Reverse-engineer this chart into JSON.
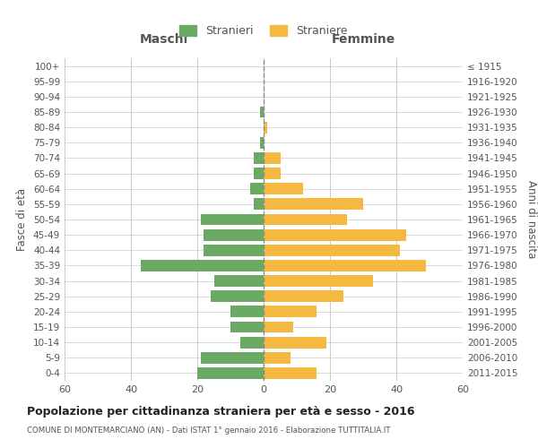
{
  "age_groups_bottom_to_top": [
    "0-4",
    "5-9",
    "10-14",
    "15-19",
    "20-24",
    "25-29",
    "30-34",
    "35-39",
    "40-44",
    "45-49",
    "50-54",
    "55-59",
    "60-64",
    "65-69",
    "70-74",
    "75-79",
    "80-84",
    "85-89",
    "90-94",
    "95-99",
    "100+"
  ],
  "birth_years_bottom_to_top": [
    "2011-2015",
    "2006-2010",
    "2001-2005",
    "1996-2000",
    "1991-1995",
    "1986-1990",
    "1981-1985",
    "1976-1980",
    "1971-1975",
    "1966-1970",
    "1961-1965",
    "1956-1960",
    "1951-1955",
    "1946-1950",
    "1941-1945",
    "1936-1940",
    "1931-1935",
    "1926-1930",
    "1921-1925",
    "1916-1920",
    "≤ 1915"
  ],
  "males_bottom_to_top": [
    20,
    19,
    7,
    10,
    10,
    16,
    15,
    37,
    18,
    18,
    19,
    3,
    4,
    3,
    3,
    1,
    0,
    1,
    0,
    0,
    0
  ],
  "females_bottom_to_top": [
    16,
    8,
    19,
    9,
    16,
    24,
    33,
    49,
    41,
    43,
    25,
    30,
    12,
    5,
    5,
    0,
    1,
    0,
    0,
    0,
    0
  ],
  "male_color": "#6aaa64",
  "female_color": "#f5b942",
  "dashed_line_color": "#888888",
  "background_color": "#ffffff",
  "grid_color": "#cccccc",
  "text_color": "#555555",
  "title": "Popolazione per cittadinanza straniera per età e sesso - 2016",
  "subtitle": "COMUNE DI MONTEMARCIANO (AN) - Dati ISTAT 1° gennaio 2016 - Elaborazione TUTTITALIA.IT",
  "ylabel_left": "Fasce di età",
  "ylabel_right": "Anni di nascita",
  "xlabel_left": "Maschi",
  "xlabel_right": "Femmine",
  "legend_male": "Stranieri",
  "legend_female": "Straniere",
  "xlim": 60
}
